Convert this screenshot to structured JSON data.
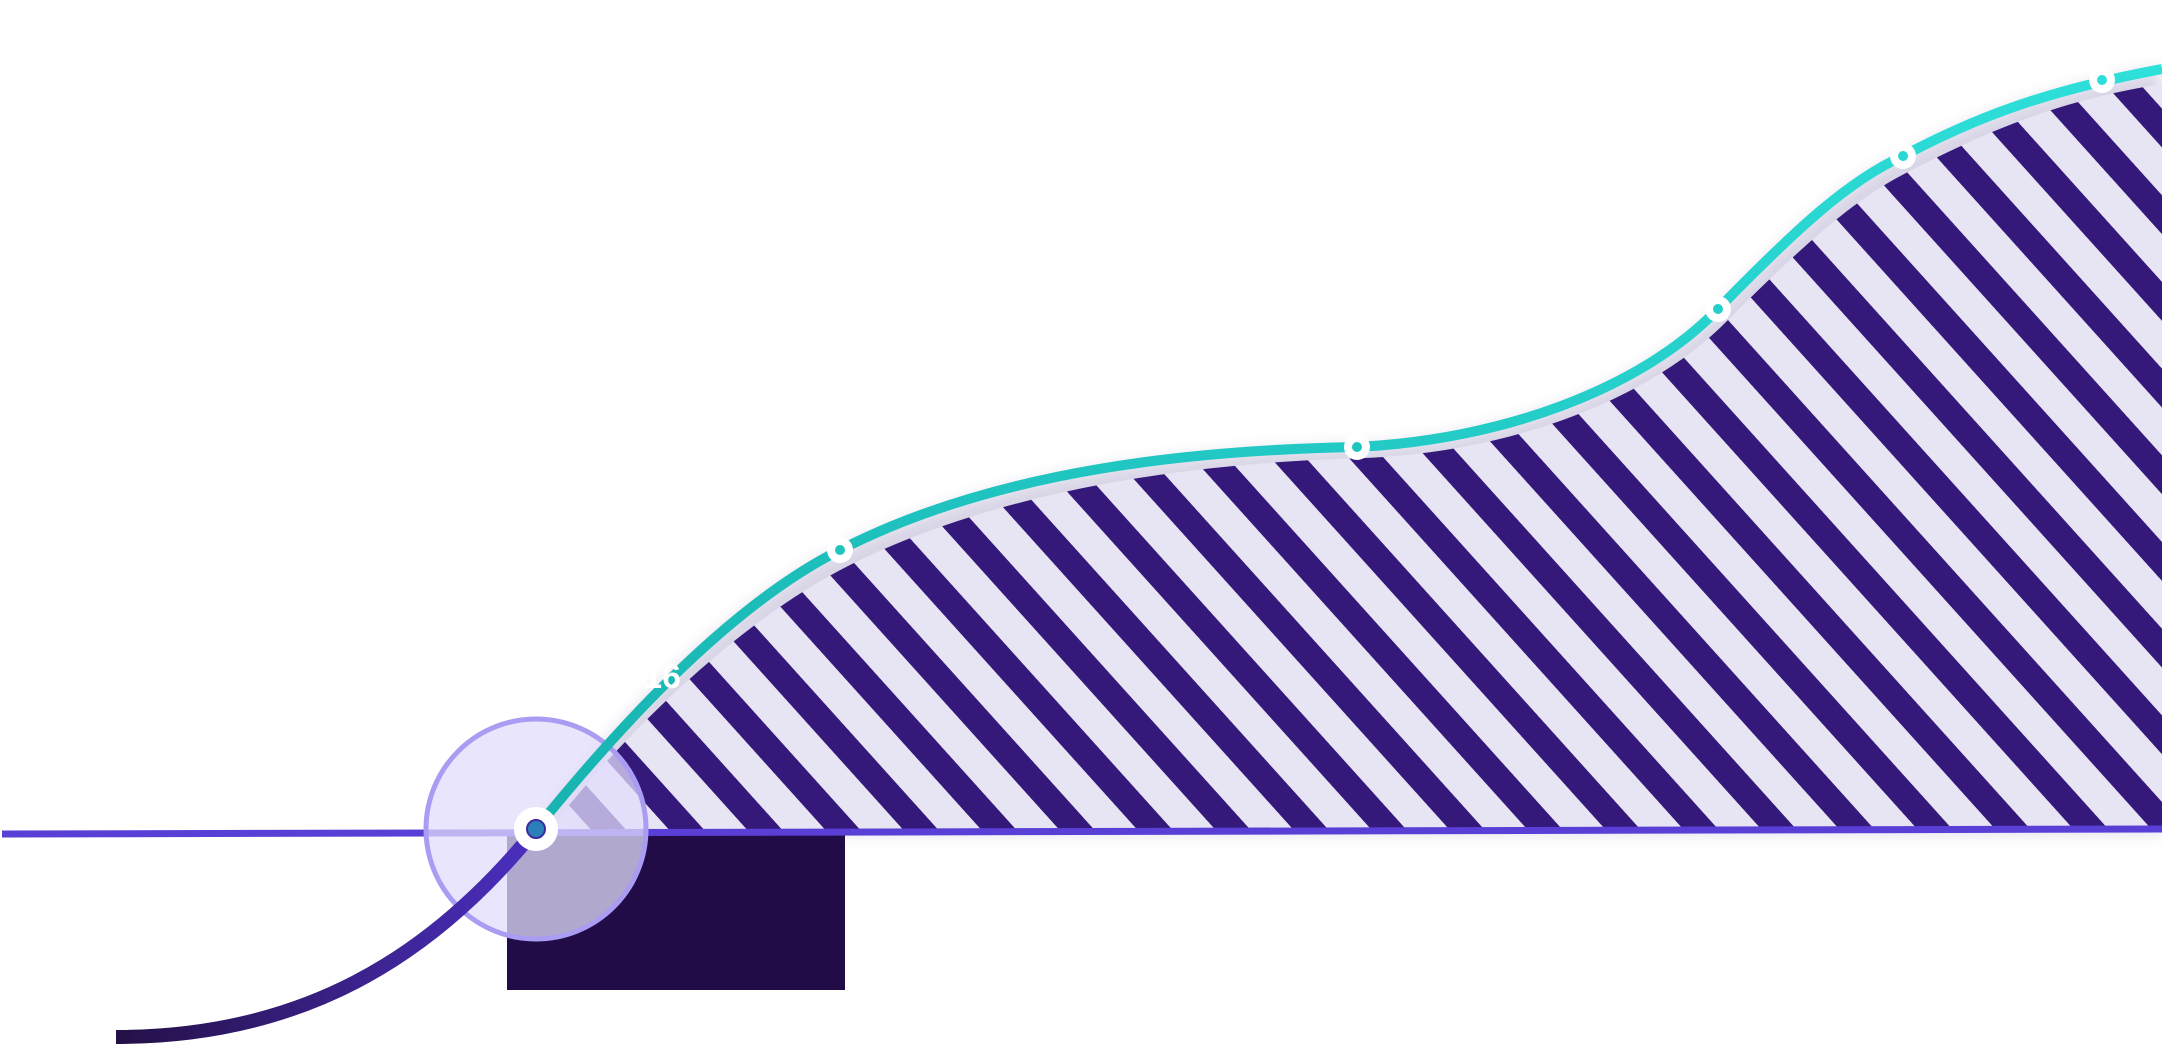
{
  "labels": {
    "point_label": "16"
  }
}
